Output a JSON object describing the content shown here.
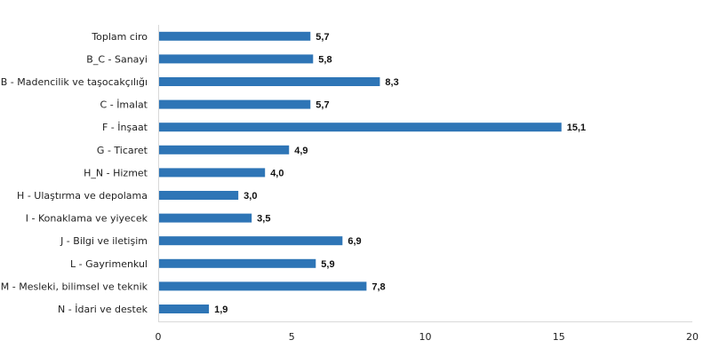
{
  "chart_data": {
    "type": "bar",
    "orientation": "horizontal",
    "title": "",
    "xlabel": "",
    "ylabel": "",
    "categories": [
      "Toplam ciro",
      "B_C - Sanayi",
      "B - Madencilik ve taşocakçılığı",
      "C - İmalat",
      "F - İnşaat",
      "G - Ticaret",
      "H_N - Hizmet",
      "H - Ulaştırma ve depolama",
      "I - Konaklama ve yiyecek",
      "J - Bilgi ve iletişim",
      "L - Gayrimenkul",
      "M - Mesleki, bilimsel ve teknik",
      "N - İdari ve destek"
    ],
    "values": [
      5.7,
      5.8,
      8.3,
      5.7,
      15.1,
      4.9,
      4.0,
      3.0,
      3.5,
      6.9,
      5.9,
      7.8,
      1.9
    ],
    "value_labels": [
      "5,7",
      "5,8",
      "8,3",
      "5,7",
      "15,1",
      "4,9",
      "4,0",
      "3,0",
      "3,5",
      "6,9",
      "5,9",
      "7,8",
      "1,9"
    ],
    "xlim": [
      0,
      20
    ],
    "xticks": [
      0,
      5,
      10,
      15,
      20
    ],
    "xtick_labels": [
      "0",
      "5",
      "10",
      "15",
      "20"
    ],
    "grid": false,
    "legend": "none",
    "bar_color": "#2e75b6",
    "axis_color": "#d9d9d9"
  }
}
